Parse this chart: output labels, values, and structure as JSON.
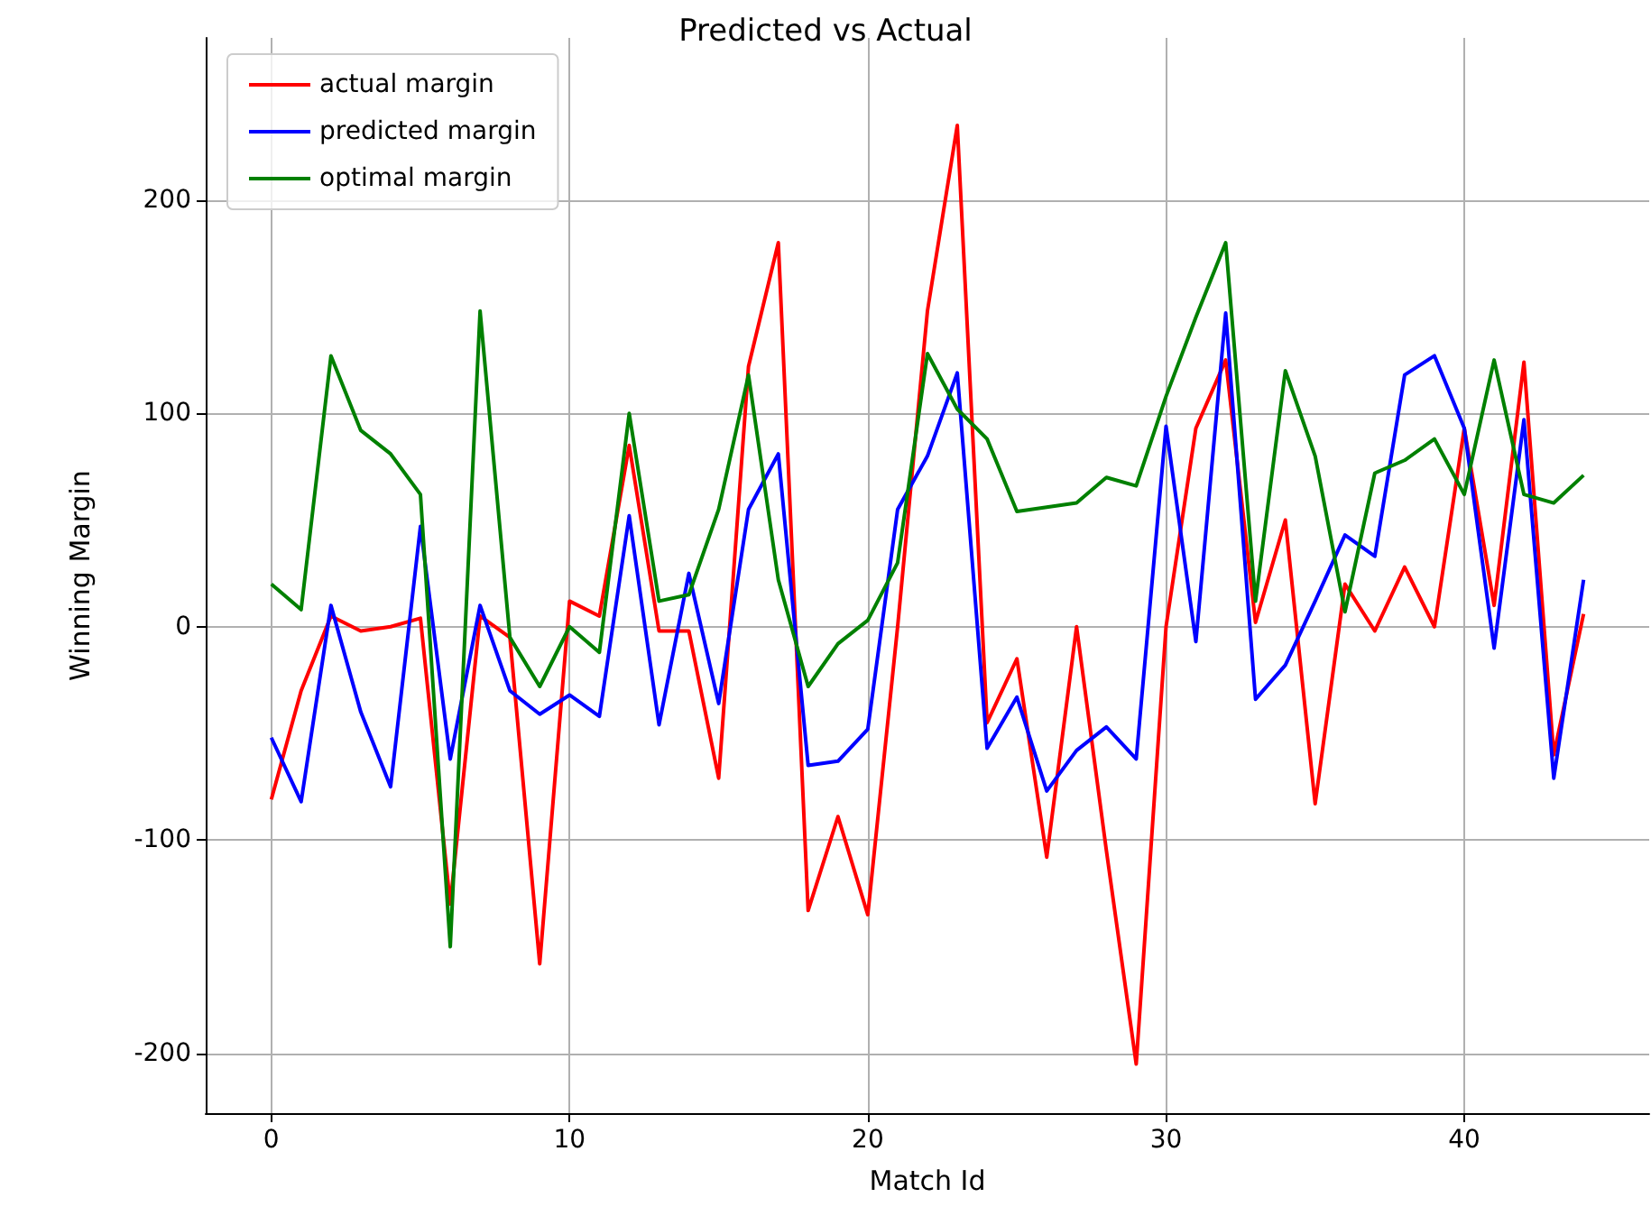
{
  "chart_data": {
    "type": "line",
    "title": "Predicted vs Actual",
    "xlabel": "Match Id",
    "ylabel": "Winning Margin",
    "x": [
      0,
      1,
      2,
      3,
      4,
      5,
      6,
      7,
      8,
      9,
      10,
      11,
      12,
      13,
      14,
      15,
      16,
      17,
      18,
      19,
      20,
      21,
      22,
      23,
      24,
      25,
      26,
      27,
      28,
      29,
      30,
      31,
      32,
      33,
      34,
      35,
      36,
      37,
      38,
      39,
      40,
      41,
      42,
      43,
      44
    ],
    "series": [
      {
        "name": "actual margin",
        "color": "#ff0000",
        "values": [
          -81,
          -30,
          5,
          -2,
          0,
          4,
          -130,
          5,
          -5,
          -158,
          12,
          5,
          85,
          -2,
          -2,
          -71,
          122,
          180,
          -133,
          -89,
          -135,
          0,
          148,
          235,
          -45,
          -15,
          -108,
          0,
          -105,
          -205,
          0,
          93,
          125,
          2,
          50,
          -83,
          20,
          -2,
          28,
          0,
          93,
          10,
          124,
          -60,
          6
        ]
      },
      {
        "name": "predicted margin",
        "color": "#0000ff",
        "values": [
          -52,
          -82,
          10,
          -40,
          -75,
          47,
          -62,
          10,
          -30,
          -41,
          -32,
          -42,
          52,
          -46,
          25,
          -36,
          55,
          81,
          -65,
          -63,
          -48,
          55,
          80,
          119,
          -57,
          -33,
          -77,
          -58,
          -47,
          -62,
          94,
          -7,
          147,
          -34,
          -18,
          12,
          43,
          33,
          118,
          127,
          93,
          -10,
          97,
          -71,
          22
        ]
      },
      {
        "name": "optimal margin",
        "color": "#008000",
        "values": [
          20,
          8,
          127,
          92,
          81,
          62,
          -150,
          148,
          -5,
          -28,
          0,
          -12,
          100,
          12,
          15,
          55,
          118,
          22,
          -28,
          -8,
          3,
          30,
          128,
          102,
          88,
          54,
          56,
          58,
          70,
          66,
          108,
          145,
          180,
          12,
          120,
          80,
          7,
          72,
          78,
          88,
          62,
          125,
          62,
          58,
          71
        ]
      }
    ],
    "xlim": [
      -2.2,
      46.2
    ],
    "xticks": [
      0,
      10,
      20,
      30,
      40
    ],
    "ylim": [
      -228,
      276
    ],
    "yticks": [
      -200,
      -100,
      0,
      100,
      200
    ],
    "grid": true,
    "legend": "top left",
    "marker": "none",
    "line_style": "solid"
  }
}
